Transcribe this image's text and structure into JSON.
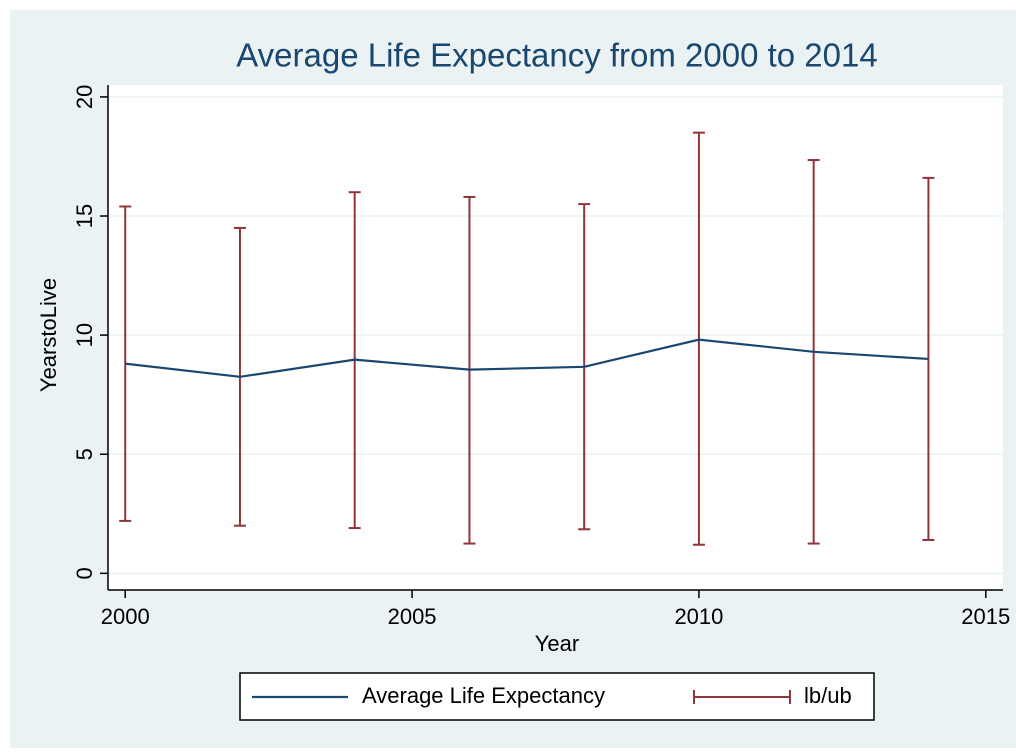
{
  "chart_data": {
    "type": "line",
    "title": "Average Life Expectancy from 2000 to 2014",
    "x_label": "Year",
    "y_label": "YearstoLive",
    "x": [
      2000,
      2002,
      2004,
      2006,
      2008,
      2010,
      2012,
      2014
    ],
    "series": [
      {
        "name": "Average Life Expectancy",
        "color": "#1a476f",
        "values": [
          8.8,
          8.25,
          8.97,
          8.55,
          8.67,
          9.81,
          9.3,
          9.0
        ]
      },
      {
        "name": "lb/ub",
        "color": "#90353b",
        "lower": [
          2.2,
          2.0,
          1.9,
          1.25,
          1.85,
          1.2,
          1.25,
          1.4
        ],
        "upper": [
          15.4,
          14.5,
          16.0,
          15.8,
          15.5,
          18.5,
          17.35,
          16.6
        ]
      }
    ],
    "xlim": [
      1999.7,
      2015.3
    ],
    "xticks": [
      2000,
      2005,
      2010,
      2015
    ],
    "ylim": [
      -0.7,
      20.5
    ],
    "yticks": [
      0,
      5,
      10,
      15,
      20
    ],
    "grid": true,
    "legend": "bottom"
  }
}
